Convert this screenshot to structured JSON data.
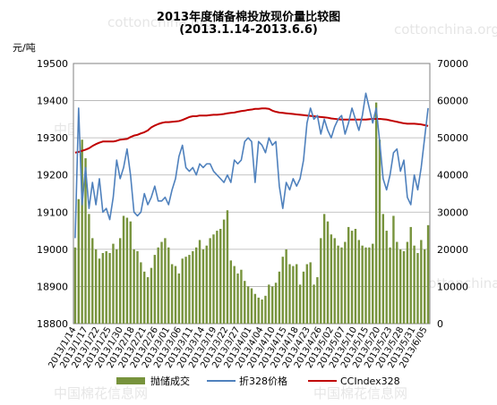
{
  "watermarks": {
    "site": "cottonchina.org",
    "brand": "中国棉花信息网"
  },
  "chart_data": {
    "type": "bar",
    "title": "2013年度储备棉投放现价量比较图",
    "subtitle": "(2013.1.14-2013.6.6)",
    "ylabel_left": "元/吨",
    "ylim_left": [
      18800,
      19500
    ],
    "yticks_left": [
      18800,
      18900,
      19000,
      19100,
      19200,
      19300,
      19400,
      19500
    ],
    "ylim_right": [
      0,
      70000
    ],
    "yticks_right": [
      0,
      10000,
      20000,
      30000,
      40000,
      50000,
      60000,
      70000
    ],
    "xtick_labels": [
      "2013/1/14",
      "2013/1/17",
      "2013/1/22",
      "2013/1/25",
      "2013/1/30",
      "2013/2/18",
      "2013/2/21",
      "2013/2/26",
      "2013/3/01",
      "2013/3/06",
      "2013/3/11",
      "2013/3/14",
      "2013/3/19",
      "2013/3/22",
      "2013/3/27",
      "2013/4/01",
      "2013/4/04",
      "2013/4/10",
      "2013/4/15",
      "2013/4/18",
      "2013/4/23",
      "2013/4/26",
      "2013/5/02",
      "2013/5/07",
      "2013/5/10",
      "2013/5/15",
      "2013/5/20",
      "2013/5/23",
      "2013/5/28",
      "2013/5/31",
      "2013/6/05"
    ],
    "legend": [
      {
        "name": "抛储成交",
        "color": "#77933c",
        "kind": "bar"
      },
      {
        "name": "折328价格",
        "color": "#4f81bd",
        "kind": "line"
      },
      {
        "name": "CCIndex328",
        "color": "#c00000",
        "kind": "line"
      }
    ],
    "series": [
      {
        "name": "抛储成交",
        "axis": "right",
        "values": [
          20500,
          33500,
          49500,
          44500,
          29500,
          23000,
          20000,
          17500,
          19000,
          19500,
          19000,
          21500,
          20000,
          23000,
          29000,
          28500,
          27500,
          20000,
          19500,
          16500,
          14000,
          12500,
          15000,
          18500,
          20500,
          22000,
          23000,
          20500,
          16000,
          15500,
          13500,
          17500,
          18000,
          18500,
          19500,
          20500,
          22500,
          20000,
          21000,
          23000,
          24000,
          25000,
          25500,
          28000,
          30500,
          17000,
          15500,
          13500,
          14500,
          11500,
          10000,
          9500,
          8000,
          7000,
          6500,
          7500,
          10500,
          10000,
          11000,
          14000,
          18000,
          20000,
          16000,
          15500,
          16000,
          10500,
          14000,
          16000,
          16500,
          10500,
          12500,
          23000,
          29500,
          27500,
          24000,
          23000,
          21000,
          20500,
          22000,
          26000,
          25000,
          25500,
          22500,
          21000,
          20500,
          20500,
          21500,
          59500,
          49500,
          29500,
          25000,
          20500,
          29000,
          22000,
          20000,
          19500,
          22000,
          26000,
          21000,
          19000,
          22500,
          20000,
          26500
        ],
        "bar_color": "#77933c"
      },
      {
        "name": "折328价格",
        "axis": "left",
        "values": [
          19030,
          19380,
          19120,
          19220,
          19110,
          19180,
          19120,
          19190,
          19100,
          19110,
          19080,
          19140,
          19240,
          19190,
          19220,
          19270,
          19200,
          19100,
          19090,
          19100,
          19150,
          19120,
          19140,
          19170,
          19130,
          19130,
          19140,
          19120,
          19160,
          19190,
          19250,
          19280,
          19220,
          19210,
          19220,
          19200,
          19230,
          19220,
          19230,
          19230,
          19210,
          19200,
          19190,
          19180,
          19200,
          19180,
          19240,
          19230,
          19240,
          19290,
          19300,
          19290,
          19180,
          19290,
          19280,
          19260,
          19300,
          19280,
          19290,
          19170,
          19110,
          19180,
          19160,
          19190,
          19170,
          19190,
          19240,
          19340,
          19380,
          19350,
          19360,
          19310,
          19350,
          19320,
          19300,
          19330,
          19350,
          19360,
          19310,
          19340,
          19380,
          19350,
          19320,
          19360,
          19420,
          19380,
          19340,
          19380,
          19290,
          19190,
          19160,
          19200,
          19260,
          19270,
          19210,
          19240,
          19140,
          19120,
          19200,
          19160,
          19220,
          19300,
          19380
        ],
        "line_color": "#4f81bd"
      },
      {
        "name": "CCIndex328",
        "axis": "left",
        "values": [
          19260,
          19262,
          19265,
          19268,
          19272,
          19278,
          19283,
          19287,
          19290,
          19290,
          19290,
          19290,
          19292,
          19295,
          19296,
          19297,
          19302,
          19306,
          19308,
          19312,
          19315,
          19320,
          19328,
          19333,
          19337,
          19340,
          19342,
          19342,
          19343,
          19344,
          19345,
          19348,
          19352,
          19356,
          19358,
          19358,
          19360,
          19360,
          19360,
          19361,
          19362,
          19362,
          19363,
          19364,
          19366,
          19367,
          19368,
          19370,
          19372,
          19373,
          19375,
          19376,
          19378,
          19378,
          19379,
          19379,
          19378,
          19373,
          19370,
          19368,
          19367,
          19366,
          19365,
          19364,
          19363,
          19362,
          19361,
          19360,
          19359,
          19358,
          19357,
          19356,
          19355,
          19354,
          19352,
          19351,
          19350,
          19349,
          19349,
          19349,
          19349,
          19349,
          19349,
          19349,
          19349,
          19350,
          19351,
          19351,
          19351,
          19350,
          19349,
          19347,
          19345,
          19343,
          19341,
          19339,
          19338,
          19338,
          19338,
          19337,
          19336,
          19334,
          19332
        ],
        "line_color": "#c00000"
      }
    ]
  }
}
